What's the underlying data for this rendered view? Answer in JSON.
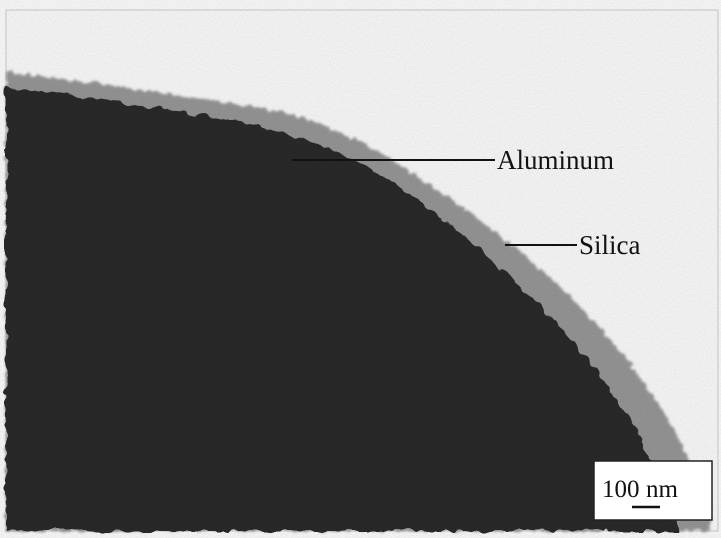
{
  "image": {
    "kind": "TEM micrograph",
    "subject": "silica-coated aluminum particle edge",
    "background_color": "#ffffff",
    "particle_color": "#2a2a2a",
    "coating_color": "#8e8e8e"
  },
  "annotations": [
    {
      "label": "Aluminum"
    },
    {
      "label": "Silica"
    }
  ],
  "scale_bar": {
    "value": "100",
    "unit": "nm"
  }
}
